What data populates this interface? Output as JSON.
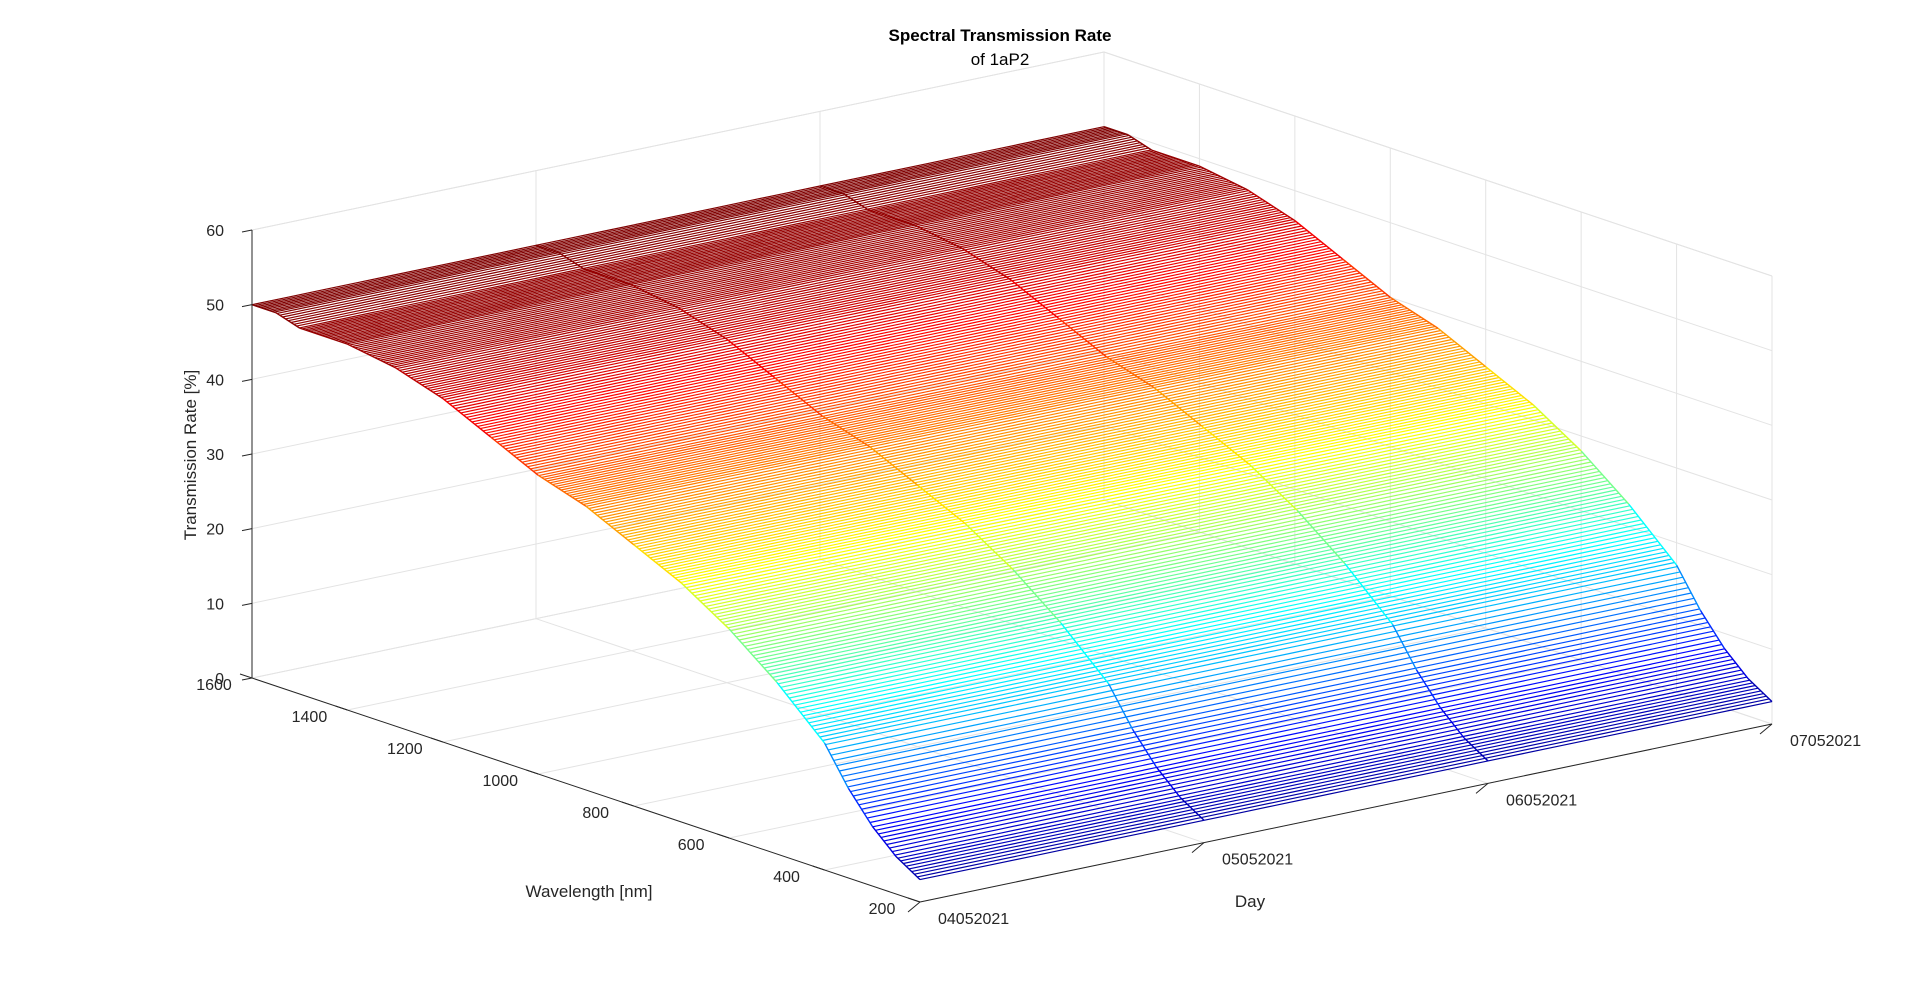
{
  "chart_data": {
    "type": "surface-3d-waterfall",
    "title": "Spectral Transmission Rate",
    "subtitle": "of 1aP2",
    "xlabel": "Day",
    "ylabel": "Wavelength [nm]",
    "zlabel": "Transmission Rate [%]",
    "x_ticks": [
      "04052021",
      "05052021",
      "06052021",
      "07052021"
    ],
    "y_ticks": [
      200,
      400,
      600,
      800,
      1000,
      1200,
      1400,
      1600
    ],
    "z_ticks": [
      0,
      10,
      20,
      30,
      40,
      50,
      60
    ],
    "xlim": [
      0,
      3
    ],
    "ylim": [
      200,
      1600
    ],
    "zlim": [
      0,
      60
    ],
    "grid": true,
    "colormap": "jet",
    "colormap_colors": [
      "#00008f",
      "#0000ff",
      "#00ffff",
      "#ffff00",
      "#ff0000",
      "#800000"
    ],
    "series": [
      {
        "day": "04052021",
        "wavelength": [
          200,
          250,
          300,
          350,
          400,
          500,
          600,
          700,
          800,
          900,
          1000,
          1100,
          1200,
          1300,
          1400,
          1500,
          1550,
          1600
        ],
        "transmission": [
          3,
          5,
          8,
          12,
          17,
          23,
          28,
          32,
          35,
          38,
          40,
          43,
          46,
          48,
          49,
          49,
          50,
          50
        ]
      },
      {
        "day": "05052021",
        "wavelength": [
          200,
          250,
          300,
          350,
          400,
          500,
          600,
          700,
          800,
          900,
          1000,
          1100,
          1200,
          1300,
          1400,
          1500,
          1550,
          1600
        ],
        "transmission": [
          3,
          5,
          8,
          12,
          17,
          23,
          28,
          32,
          35,
          38,
          40,
          43,
          46,
          48,
          49,
          49,
          50,
          50
        ]
      },
      {
        "day": "06052021",
        "wavelength": [
          200,
          250,
          300,
          350,
          400,
          500,
          600,
          700,
          800,
          900,
          1000,
          1100,
          1200,
          1300,
          1400,
          1500,
          1550,
          1600
        ],
        "transmission": [
          3,
          5,
          8,
          12,
          17,
          23,
          28,
          32,
          35,
          38,
          40,
          43,
          46,
          48,
          49,
          49,
          50,
          50
        ]
      },
      {
        "day": "07052021",
        "wavelength": [
          200,
          250,
          300,
          350,
          400,
          500,
          600,
          700,
          800,
          900,
          1000,
          1100,
          1200,
          1300,
          1400,
          1500,
          1550,
          1600
        ],
        "transmission": [
          3,
          5,
          8,
          12,
          17,
          23,
          28,
          32,
          35,
          38,
          40,
          43,
          46,
          48,
          49,
          49,
          50,
          50
        ]
      }
    ]
  }
}
